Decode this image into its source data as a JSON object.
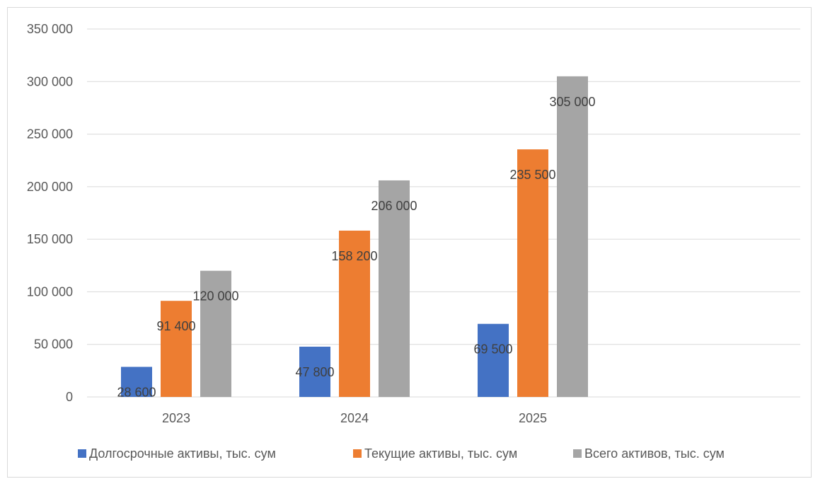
{
  "chart_data": {
    "type": "bar",
    "categories": [
      "2023",
      "2024",
      "2025"
    ],
    "series": [
      {
        "name": "Долгосрочные активы, тыс. сум",
        "values": [
          28600,
          47800,
          69500
        ],
        "labels": [
          "28 600",
          "47 800",
          "69 500"
        ],
        "color": "#4472c4"
      },
      {
        "name": "Текущие активы, тыс. сум",
        "values": [
          91400,
          158200,
          235500
        ],
        "labels": [
          "91 400",
          "158 200",
          "235 500"
        ],
        "color": "#ed7d31"
      },
      {
        "name": "Всего активов, тыс. сум",
        "values": [
          120000,
          206000,
          305000
        ],
        "labels": [
          "120 000",
          "206 000",
          "305 000"
        ],
        "color": "#a5a5a5"
      }
    ],
    "ylim": [
      0,
      350000
    ],
    "yticks": [
      0,
      50000,
      100000,
      150000,
      200000,
      250000,
      300000,
      350000
    ],
    "ytick_labels": [
      "0",
      "50 000",
      "100 000",
      "150 000",
      "200 000",
      "250 000",
      "300 000",
      "350 000"
    ],
    "grid": true,
    "legend_position": "bottom"
  }
}
